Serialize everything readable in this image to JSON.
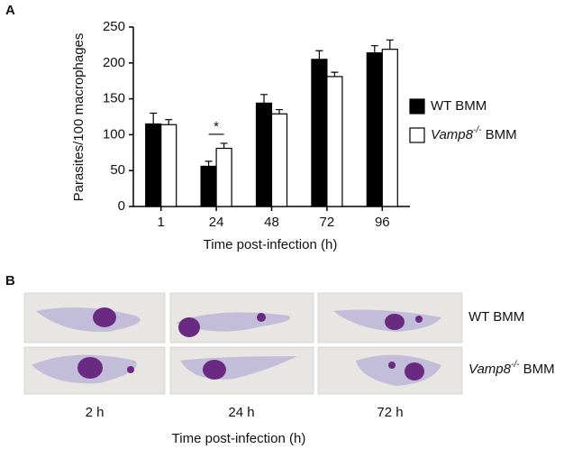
{
  "panel_labels": [
    "A",
    "B"
  ],
  "chart_data": {
    "type": "bar",
    "y_label": "Parasites/100 macrophages",
    "x_label": "Time post-infection (h)",
    "categories": [
      "1",
      "24",
      "48",
      "72",
      "96"
    ],
    "series": [
      {
        "name": "WT BMM",
        "color": "#000000",
        "values": [
          115,
          56,
          144,
          205,
          214
        ],
        "errors": [
          15,
          7,
          12,
          12,
          10
        ]
      },
      {
        "name": "Vamp8-/- BMM",
        "color": "#ffffff",
        "values": [
          114,
          81,
          129,
          181,
          219
        ],
        "errors": [
          7,
          7,
          6,
          6,
          13
        ]
      }
    ],
    "ylim": [
      0,
      250
    ],
    "yticks": [
      0,
      50,
      100,
      150,
      200,
      250
    ],
    "annotation": "*",
    "legend": "right"
  },
  "panel_b": {
    "rows": [
      "WT BMM",
      "Vamp8-/- BMM"
    ],
    "columns": [
      "2 h",
      "24 h",
      "72 h"
    ],
    "x_label": "Time post-infection (h)"
  }
}
